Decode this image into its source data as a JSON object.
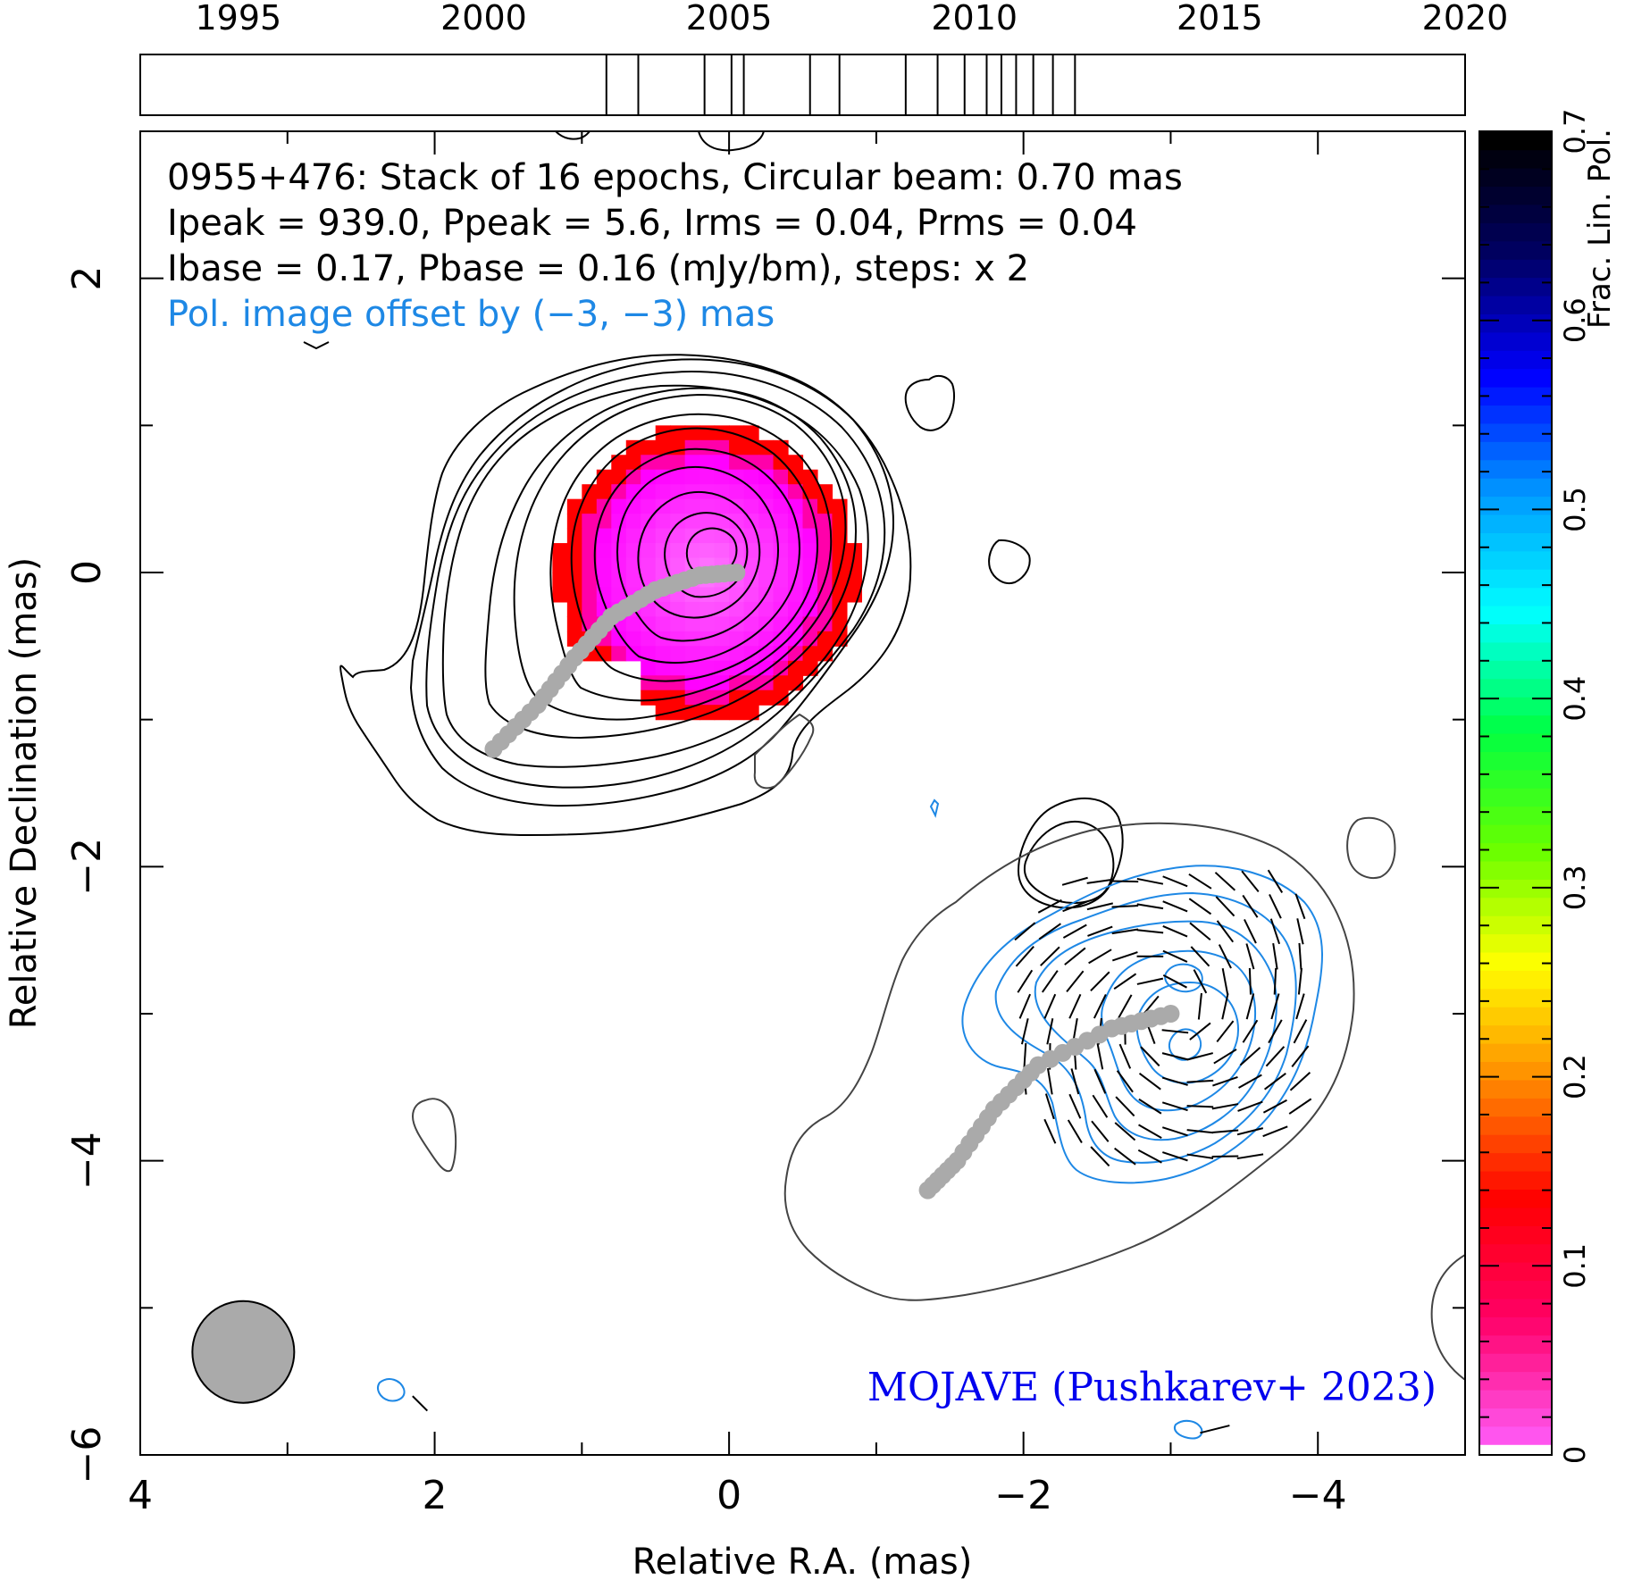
{
  "chart_data": {
    "type": "heatmap",
    "header": {
      "line1": "0955+476: Stack of 16 epochs, Circular beam: 0.70 mas",
      "line2": "Ipeak = 939.0, Ppeak = 5.6, Irms = 0.04, Prms = 0.04",
      "line3": "Ibase = 0.17, Pbase = 0.16 (mJy/bm), steps: x 2",
      "line4": "Pol. image offset by (−3, −3) mas"
    },
    "credit": "MOJAVE (Pushkarev+ 2023)",
    "xlabel": "Relative R.A. (mas)",
    "ylabel": "Relative Declination (mas)",
    "xlim": [
      4,
      -5
    ],
    "ylim": [
      -6,
      3
    ],
    "x_ticks": [
      {
        "value": 4,
        "label": "4"
      },
      {
        "value": 2,
        "label": "2"
      },
      {
        "value": 0,
        "label": "0"
      },
      {
        "value": -2,
        "label": "−2"
      },
      {
        "value": -4,
        "label": "−4"
      }
    ],
    "y_ticks": [
      {
        "value": 2,
        "label": "2"
      },
      {
        "value": 0,
        "label": "0"
      },
      {
        "value": -2,
        "label": "−2"
      },
      {
        "value": -4,
        "label": "−4"
      },
      {
        "value": -6,
        "label": "−6"
      }
    ],
    "epoch_timeline": {
      "range": [
        1993,
        2020
      ],
      "ticks": [
        {
          "value": 1995,
          "label": "1995"
        },
        {
          "value": 2000,
          "label": "2000"
        },
        {
          "value": 2005,
          "label": "2005"
        },
        {
          "value": 2010,
          "label": "2010"
        },
        {
          "value": 2015,
          "label": "2015"
        },
        {
          "value": 2020,
          "label": "2020"
        }
      ],
      "epochs": [
        2002.5,
        2003.15,
        2004.5,
        2005.05,
        2005.3,
        2006.65,
        2007.25,
        2008.6,
        2009.25,
        2009.8,
        2010.25,
        2010.55,
        2010.85,
        2011.2,
        2011.6,
        2012.05
      ]
    },
    "colorbar": {
      "label": "Frac. Lin. Pol.",
      "range": [
        0,
        0.7
      ],
      "ticks": [
        {
          "value": 0,
          "label": "0"
        },
        {
          "value": 0.1,
          "label": "0.1"
        },
        {
          "value": 0.2,
          "label": "0.2"
        },
        {
          "value": 0.3,
          "label": "0.3"
        },
        {
          "value": 0.4,
          "label": "0.4"
        },
        {
          "value": 0.5,
          "label": "0.5"
        },
        {
          "value": 0.6,
          "label": "0.6"
        },
        {
          "value": 0.7,
          "label": "0.7"
        }
      ],
      "colors": [
        "#ff55ee",
        "#ff0066",
        "#ff0000",
        "#ff8800",
        "#ffff00",
        "#66ff00",
        "#00ff44",
        "#00ffff",
        "#0099ff",
        "#0000ff",
        "#000066",
        "#000000"
      ]
    },
    "series": [
      {
        "kind": "total_intensity_contours",
        "color": "#000000",
        "center": [
          0.15,
          0.05
        ],
        "levels_count": 11
      },
      {
        "kind": "fractional_polarization_pixels",
        "colors": [
          "#ff0000",
          "#ff00ff"
        ],
        "extent_x": [
          1.45,
          -0.9
        ],
        "extent_y": [
          -1.15,
          0.95
        ]
      },
      {
        "kind": "jet_ridge_line",
        "color": "#aaaaaa",
        "points": [
          [
            -0.05,
            0.0
          ],
          [
            0.2,
            -0.02
          ],
          [
            0.5,
            -0.12
          ],
          [
            0.8,
            -0.3
          ],
          [
            1.05,
            -0.58
          ],
          [
            1.3,
            -0.9
          ],
          [
            1.6,
            -1.2
          ]
        ]
      },
      {
        "kind": "polarized_intensity_contours",
        "color": "#1e88e5",
        "center": [
          -3.05,
          -2.95
        ],
        "levels_count": 6
      },
      {
        "kind": "offset_ridge_line",
        "color": "#aaaaaa",
        "points": [
          [
            -3.0,
            -3.0
          ],
          [
            -2.6,
            -3.1
          ],
          [
            -2.1,
            -3.35
          ],
          [
            -1.8,
            -3.65
          ],
          [
            -1.55,
            -4.0
          ],
          [
            -1.35,
            -4.2
          ]
        ]
      }
    ],
    "beam": {
      "x": 3.3,
      "y": -5.3,
      "diameter_mas": 0.7,
      "color": "#aaaaaa"
    }
  }
}
